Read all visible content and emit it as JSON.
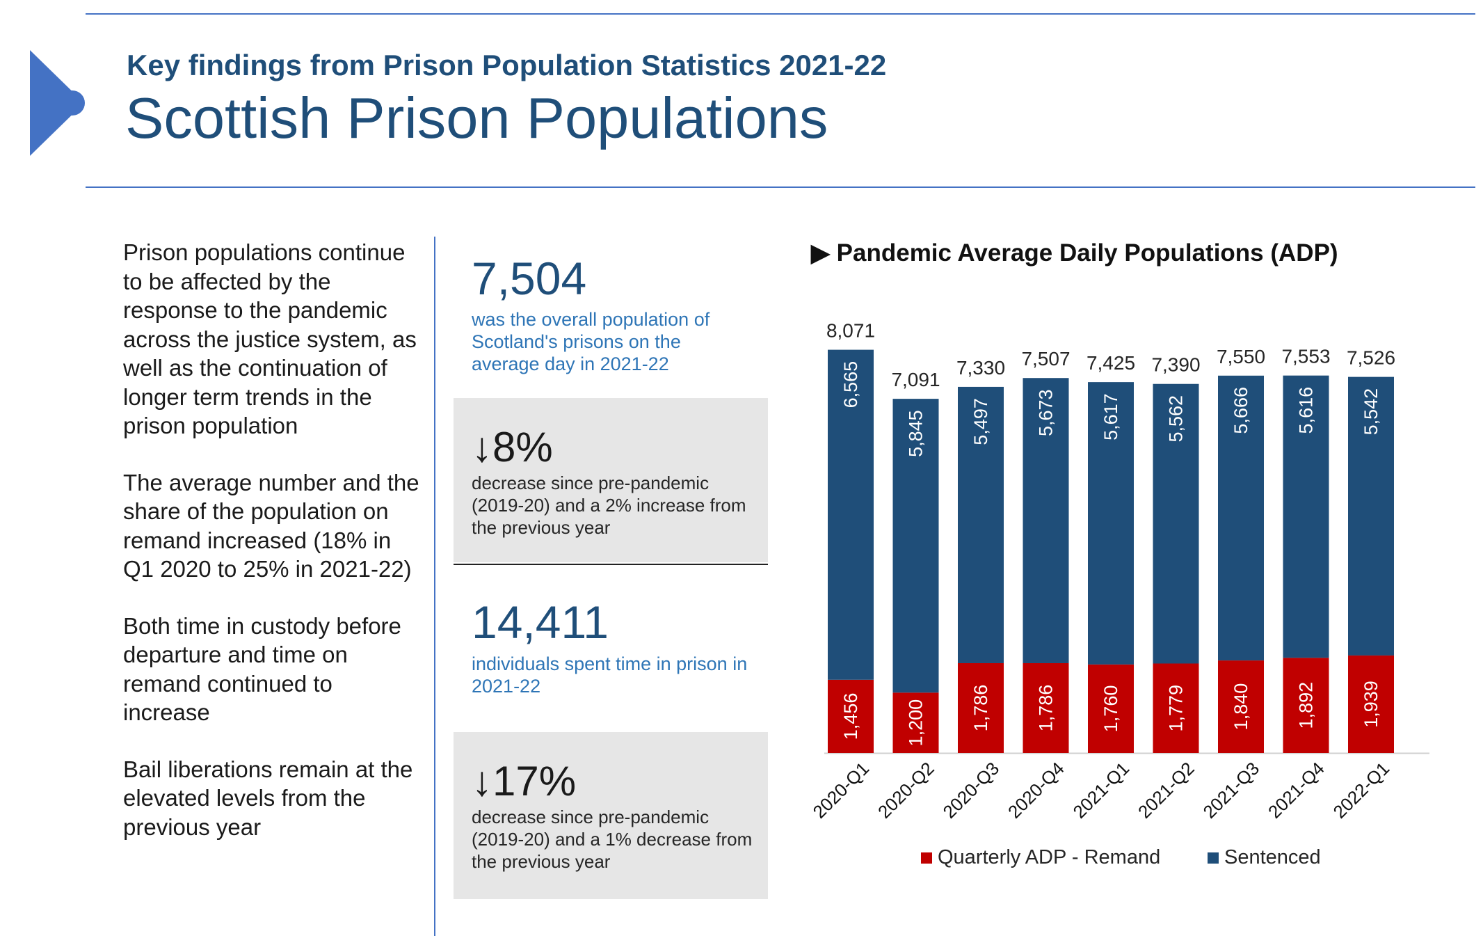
{
  "header": {
    "subtitle": "Key findings from Prison Population Statistics 2021-22",
    "title": "Scottish Prison Populations"
  },
  "findings": [
    "Prison populations continue to be affected by the response to the pandemic across the justice system, as well as the continuation of longer term trends in the prison population",
    "The average number and the share of the population on remand increased (18% in Q1 2020 to 25% in 2021-22)",
    "Both time in custody before departure and time on remand continued to increase",
    "Bail liberations remain at the elevated levels from the previous year"
  ],
  "stats": {
    "population": {
      "value": "7,504",
      "desc": "was the overall population of Scotland's prisons on the average day in 2021-22"
    },
    "population_change": {
      "pct": "8%",
      "direction": "down",
      "desc": "decrease since pre-pandemic (2019-20) and a 2% increase from the previous year"
    },
    "individuals": {
      "value": "14,411",
      "desc": "individuals spent time in prison in 2021-22"
    },
    "individuals_change": {
      "pct": "17%",
      "direction": "down",
      "desc": "decrease since pre-pandemic (2019-20) and a 1% decrease from the previous year"
    }
  },
  "colors": {
    "accent": "#4472c4",
    "title": "#1f4e79",
    "remand": "#c00000",
    "sentenced": "#1f4e79"
  },
  "chart_data": {
    "type": "bar",
    "stacked": true,
    "title": "Pandemic Average Daily Populations (ADP)",
    "title_marker": "▶",
    "categories": [
      "2020-Q1",
      "2020-Q2",
      "2020-Q3",
      "2020-Q4",
      "2021-Q1",
      "2021-Q2",
      "2021-Q3",
      "2021-Q4",
      "2022-Q1"
    ],
    "series": [
      {
        "name": "Quarterly ADP - Remand",
        "color": "#c00000",
        "values": [
          1456,
          1200,
          1786,
          1786,
          1760,
          1779,
          1840,
          1892,
          1939
        ]
      },
      {
        "name": "Sentenced",
        "color": "#1f4e79",
        "values": [
          6565,
          5845,
          5497,
          5673,
          5617,
          5562,
          5666,
          5616,
          5542
        ]
      }
    ],
    "totals": [
      8071,
      7091,
      7330,
      7507,
      7425,
      7390,
      7550,
      7553,
      7526
    ],
    "ylim": [
      0,
      8071
    ],
    "legend": "bottom",
    "xlabel": "",
    "ylabel": ""
  }
}
